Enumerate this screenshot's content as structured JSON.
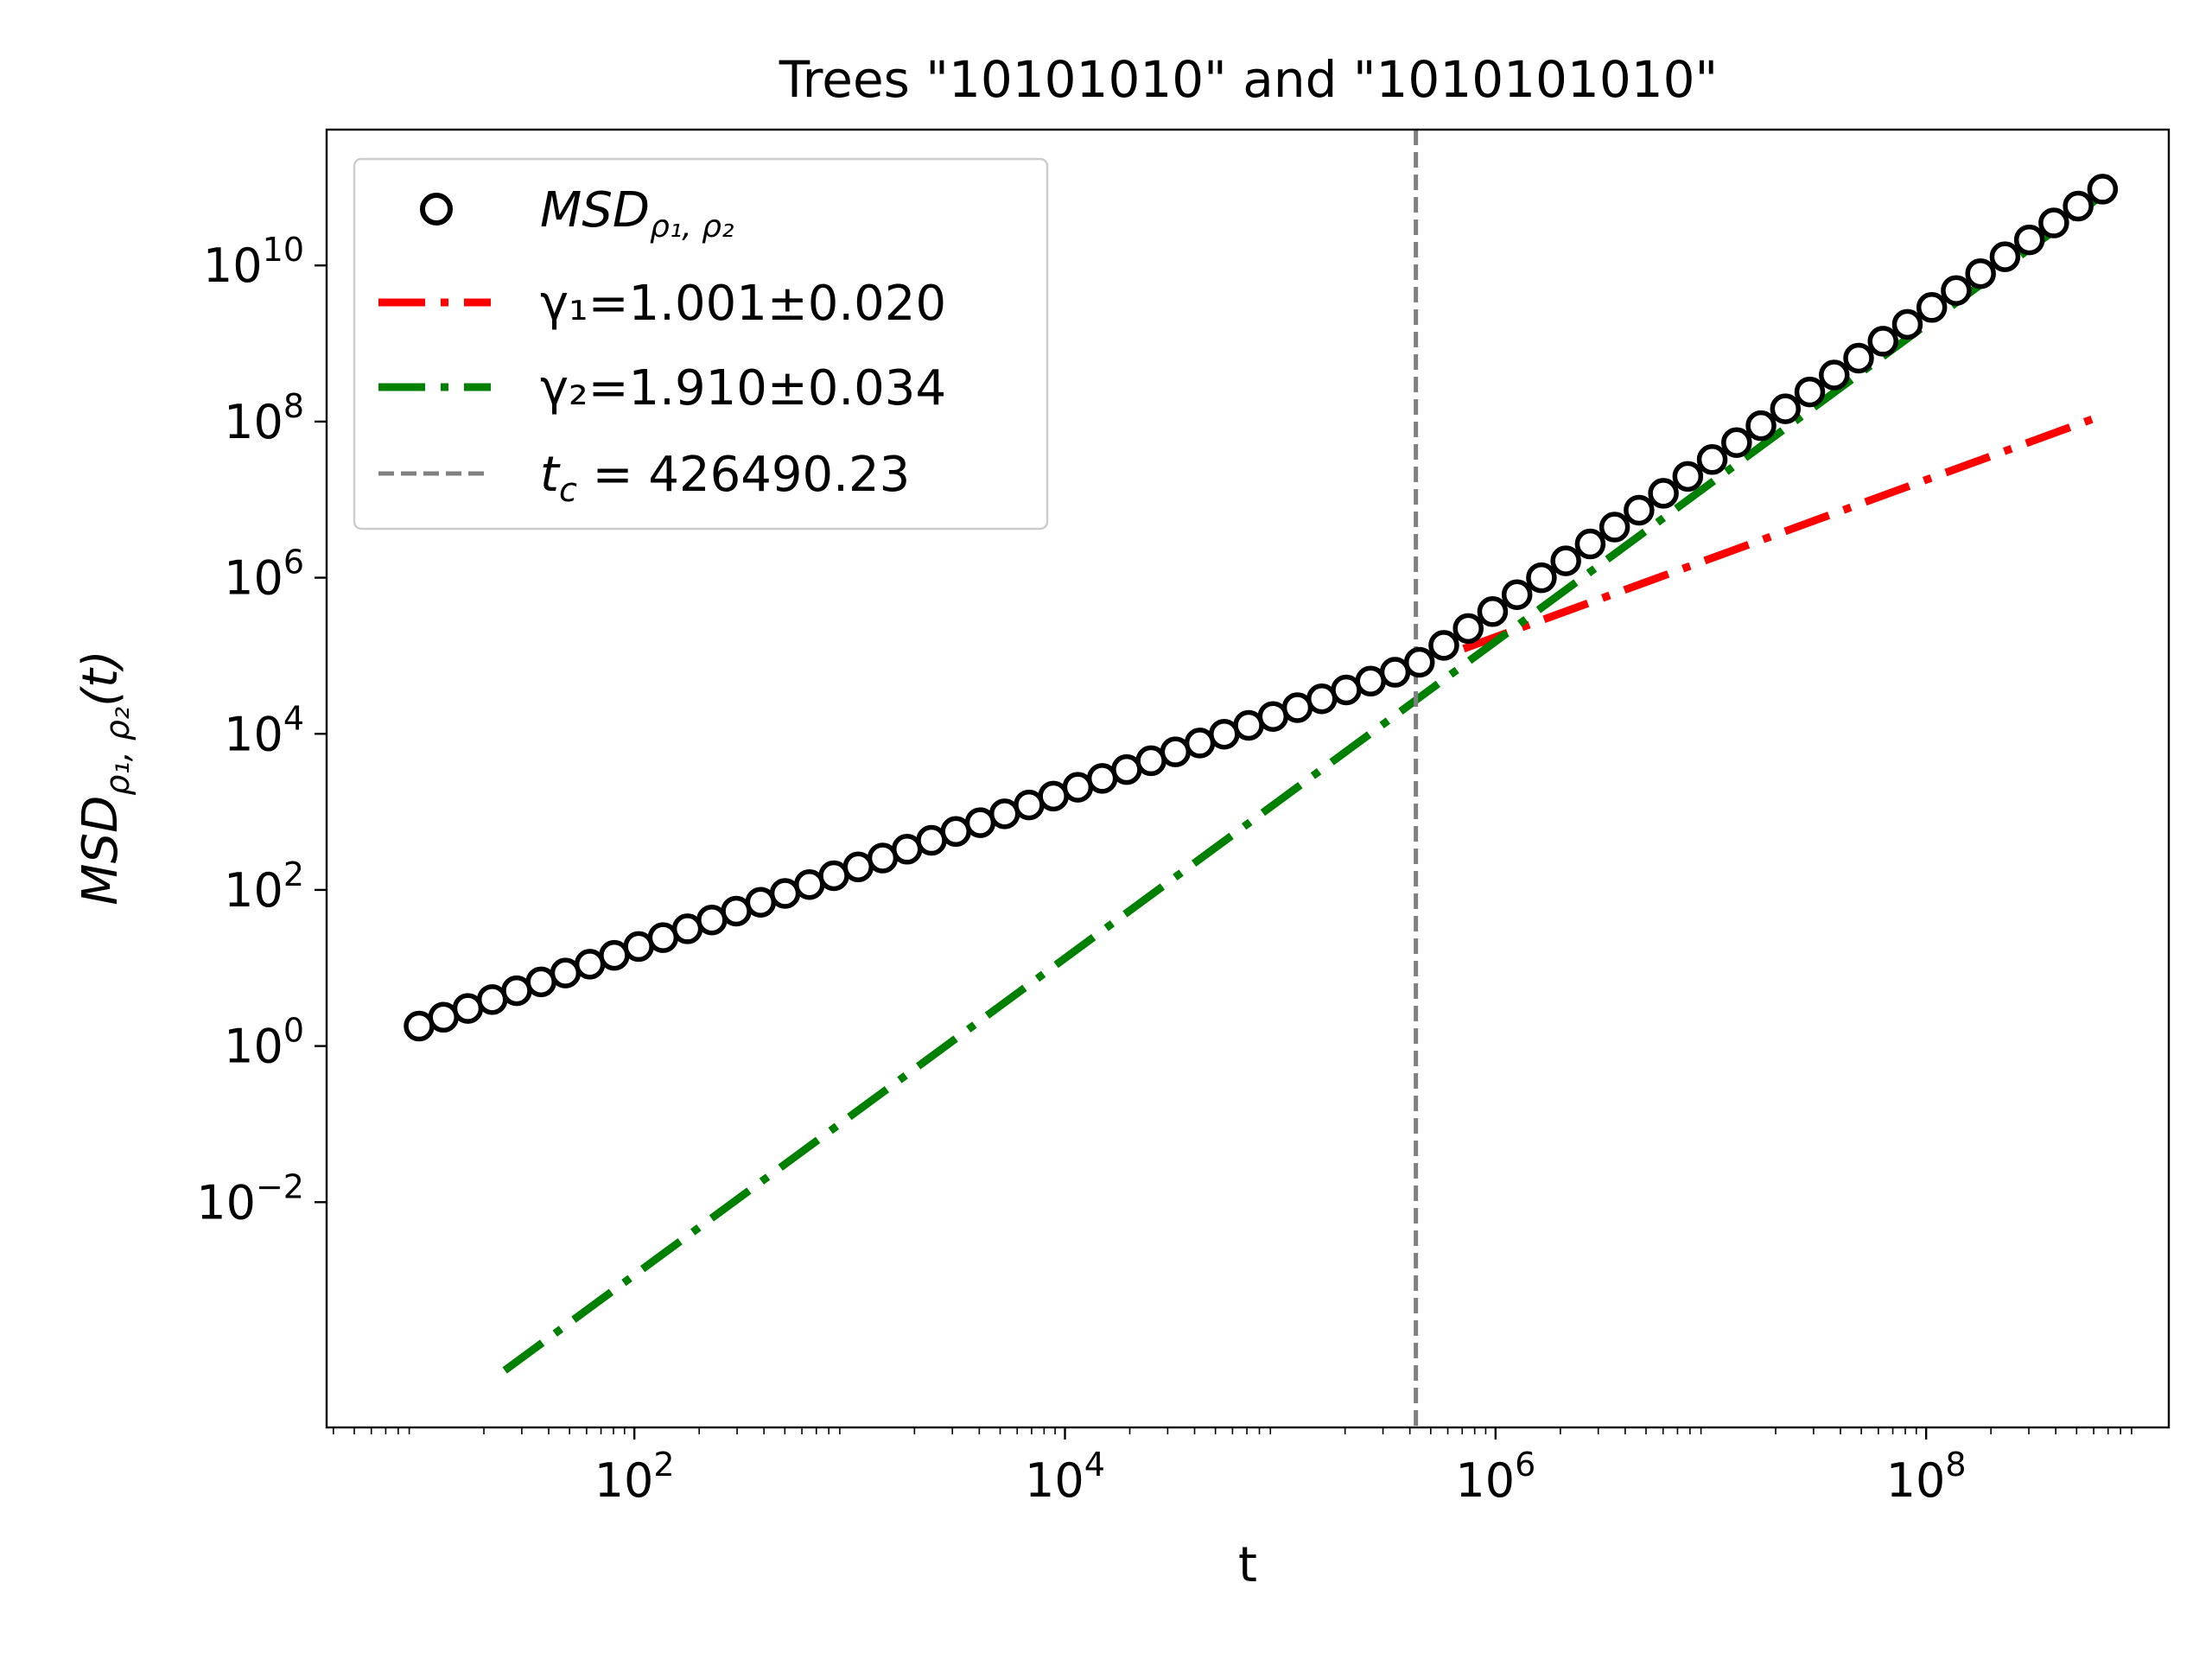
{
  "chart_data": {
    "type": "scatter",
    "title": "Trees \"10101010\" and \"1010101010\"",
    "xlabel": "t",
    "ylabel": {
      "main": "MSD",
      "sub": "ρ₁, ρ₂",
      "tail": "(t)"
    },
    "xscale": "log",
    "yscale": "log",
    "xlim": [
      3.72,
      1340000000.0
    ],
    "ylim": [
      1.3e-05,
      550000000000.0
    ],
    "x_ticks": [
      {
        "value": 100,
        "base": "10",
        "exp": "2"
      },
      {
        "value": 10000,
        "base": "10",
        "exp": "4"
      },
      {
        "value": 1000000,
        "base": "10",
        "exp": "6"
      },
      {
        "value": 100000000,
        "base": "10",
        "exp": "8"
      }
    ],
    "y_ticks": [
      {
        "value": 0.01,
        "base": "10",
        "exp": "−2"
      },
      {
        "value": 1,
        "base": "10",
        "exp": "0"
      },
      {
        "value": 100,
        "base": "10",
        "exp": "2"
      },
      {
        "value": 10000,
        "base": "10",
        "exp": "4"
      },
      {
        "value": 1000000,
        "base": "10",
        "exp": "6"
      },
      {
        "value": 100000000,
        "base": "10",
        "exp": "8"
      },
      {
        "value": 10000000000,
        "base": "10",
        "exp": "10"
      }
    ],
    "grid": false,
    "legend": {
      "placement": "upper-left",
      "entries": [
        {
          "label_main": "MSD",
          "label_sub": "ρ₁, ρ₂"
        },
        {
          "label": "γ₁=1.001±0.020"
        },
        {
          "label": "γ₂=1.910±0.034"
        },
        {
          "label": "t_c = 426490.23",
          "label_t": "t",
          "label_sub": "c",
          "label_rest": " = 426490.23"
        }
      ]
    },
    "series": [
      {
        "kind": "markers",
        "color": "#000000",
        "x_start": 10,
        "x_end": 660000000,
        "points": 70,
        "y_rule": "1.8·t/10 for t ≤ 426490.23, continuing with exponent 1.910 above"
      },
      {
        "kind": "fit-line",
        "color": "#ff0000",
        "dash": "dash-dot",
        "x": [
          10,
          660000000.0
        ],
        "y": [
          1.6,
          120000000.0
        ]
      },
      {
        "kind": "fit-line",
        "color": "#008000",
        "dash": "dash-dot",
        "x": [
          25,
          660000000.0
        ],
        "y": [
          7e-05,
          80000000000.0
        ]
      },
      {
        "kind": "vline",
        "color": "#808080",
        "dash": "dashed",
        "x": 426490.23
      }
    ]
  }
}
